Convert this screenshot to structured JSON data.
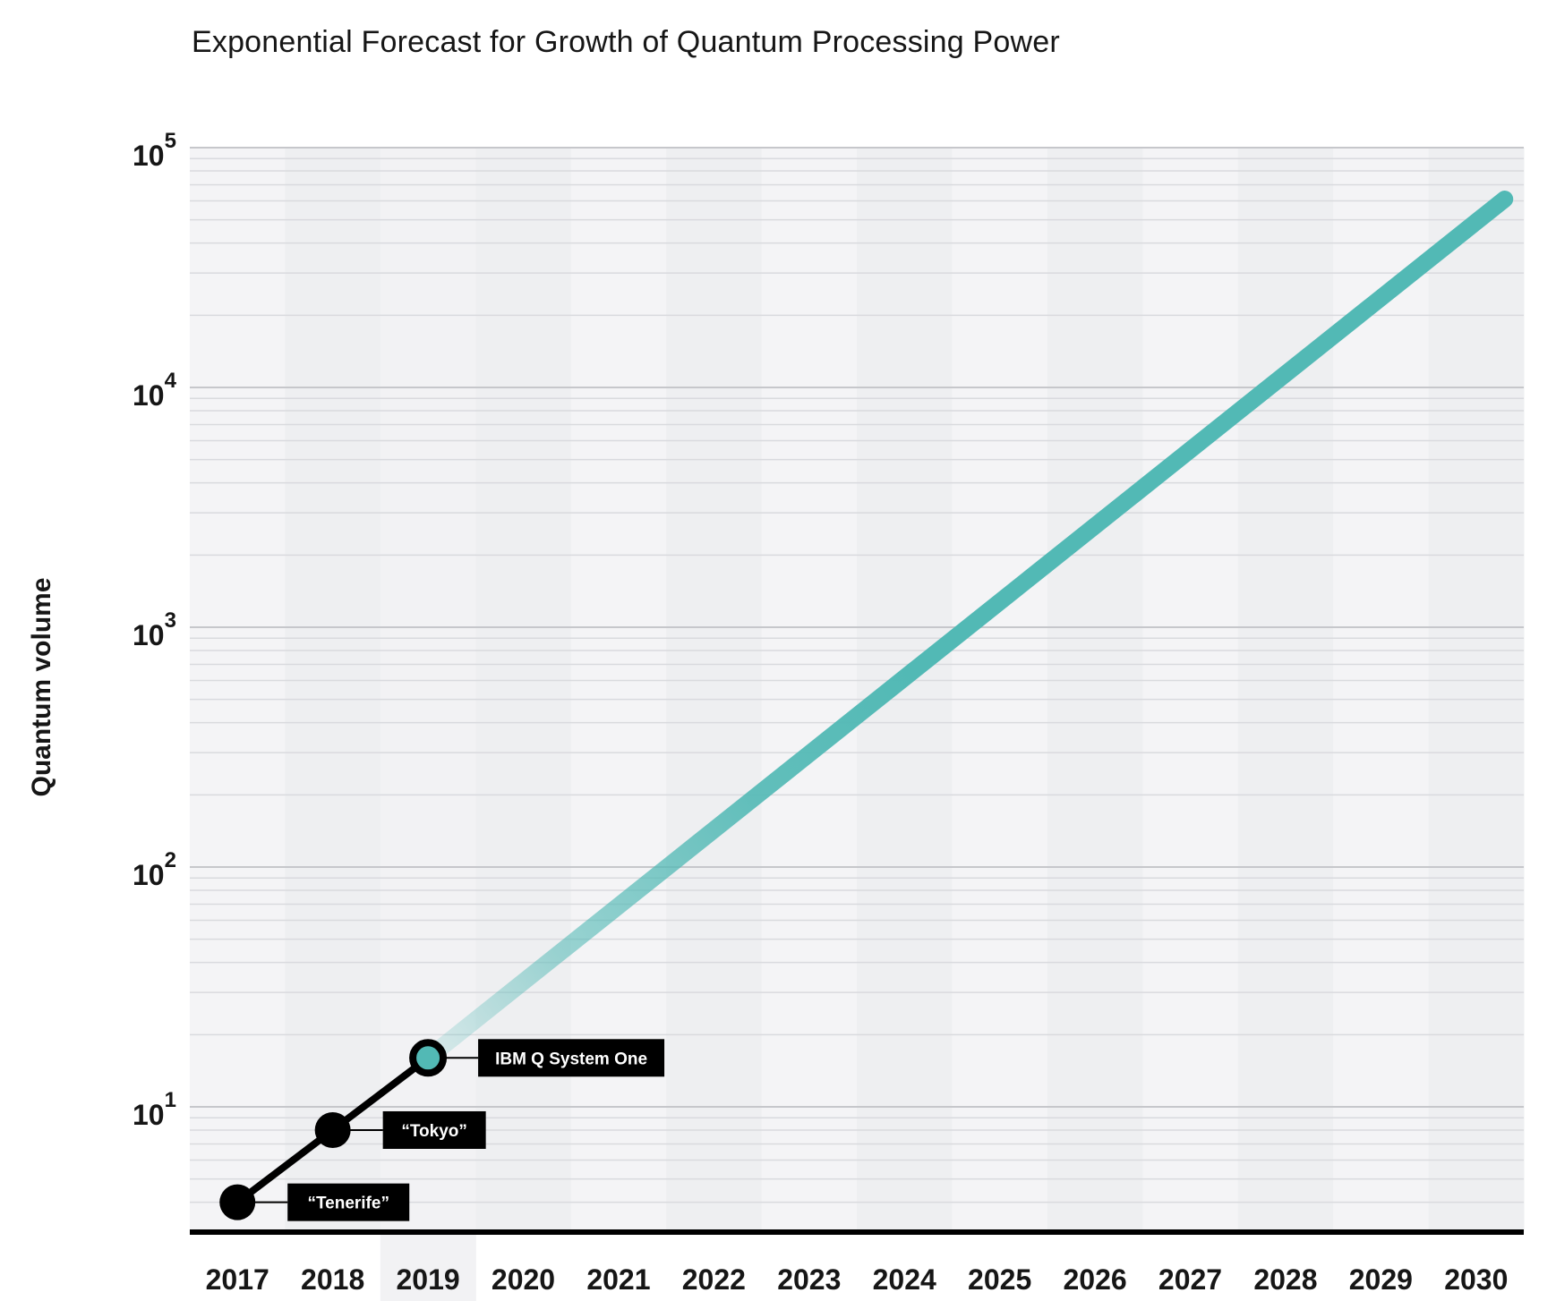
{
  "chart_data": {
    "type": "line",
    "title": "Exponential Forecast for Growth of Quantum Processing Power",
    "xlabel": "",
    "ylabel": "Quantum volume",
    "x_scale": "linear",
    "y_scale": "log",
    "ylim": [
      3,
      100000
    ],
    "x_tick_labels": [
      "2017",
      "2018",
      "2019",
      "2020",
      "2021",
      "2022",
      "2023",
      "2024",
      "2025",
      "2026",
      "2027",
      "2028",
      "2029",
      "2030"
    ],
    "y_tick_labels": [
      {
        "base": "10",
        "exp": "1",
        "value": 10
      },
      {
        "base": "10",
        "exp": "2",
        "value": 100
      },
      {
        "base": "10",
        "exp": "3",
        "value": 1000
      },
      {
        "base": "10",
        "exp": "4",
        "value": 10000
      },
      {
        "base": "10",
        "exp": "5",
        "value": 100000
      }
    ],
    "grid": true,
    "highlighted_year": "2019",
    "series": [
      {
        "kind": "measured",
        "color": "#000000",
        "points": [
          {
            "x": 2017,
            "y": 4,
            "label": "“Tenerife”"
          },
          {
            "x": 2018,
            "y": 8,
            "label": "“Tokyo”"
          },
          {
            "x": 2019,
            "y": 16,
            "label": "IBM Q System One"
          }
        ]
      },
      {
        "kind": "forecast",
        "color": "#52b9b5",
        "points": [
          {
            "x": 2019,
            "y": 16
          },
          {
            "x": 2030.3,
            "y": 61000
          }
        ]
      }
    ]
  }
}
